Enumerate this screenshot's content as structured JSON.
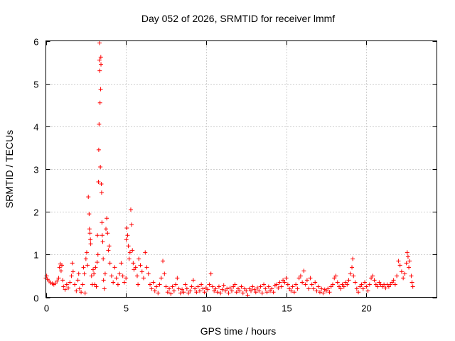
{
  "chart_data": {
    "type": "scatter",
    "title": "Day 052 of 2026, SRMTID for receiver lmmf",
    "xlabel": "GPS time / hours",
    "ylabel": "SRMTID / TECUs",
    "xlim": [
      0,
      24.4
    ],
    "ylim": [
      0,
      6
    ],
    "xticks": [
      0,
      5,
      10,
      15,
      20
    ],
    "yticks": [
      0,
      1,
      2,
      3,
      4,
      5,
      6
    ],
    "grid": true,
    "marker": "+",
    "color": "#ff0000",
    "series": [
      {
        "name": "SRMTID",
        "points": [
          [
            0.0,
            0.45
          ],
          [
            0.05,
            0.5
          ],
          [
            0.1,
            0.42
          ],
          [
            0.2,
            0.38
          ],
          [
            0.3,
            0.34
          ],
          [
            0.4,
            0.32
          ],
          [
            0.5,
            0.3
          ],
          [
            0.6,
            0.33
          ],
          [
            0.7,
            0.38
          ],
          [
            0.8,
            0.45
          ],
          [
            0.85,
            0.7
          ],
          [
            0.9,
            0.78
          ],
          [
            0.95,
            0.62
          ],
          [
            1.0,
            0.75
          ],
          [
            1.05,
            0.4
          ],
          [
            1.1,
            0.25
          ],
          [
            1.2,
            0.18
          ],
          [
            1.3,
            0.3
          ],
          [
            1.4,
            0.22
          ],
          [
            1.5,
            0.35
          ],
          [
            1.6,
            0.5
          ],
          [
            1.65,
            0.8
          ],
          [
            1.7,
            0.6
          ],
          [
            1.8,
            0.3
          ],
          [
            1.9,
            0.15
          ],
          [
            2.0,
            0.4
          ],
          [
            2.05,
            0.55
          ],
          [
            2.1,
            0.2
          ],
          [
            2.2,
            0.12
          ],
          [
            2.3,
            0.3
          ],
          [
            2.35,
            0.7
          ],
          [
            2.4,
            0.55
          ],
          [
            2.45,
            0.1
          ],
          [
            2.5,
            0.9
          ],
          [
            2.55,
            1.05
          ],
          [
            2.6,
            0.75
          ],
          [
            2.65,
            2.35
          ],
          [
            2.7,
            1.95
          ],
          [
            2.72,
            1.6
          ],
          [
            2.75,
            1.5
          ],
          [
            2.78,
            1.35
          ],
          [
            2.8,
            1.25
          ],
          [
            2.85,
            0.5
          ],
          [
            2.9,
            0.3
          ],
          [
            2.95,
            0.65
          ],
          [
            3.0,
            0.55
          ],
          [
            3.05,
            0.3
          ],
          [
            3.1,
            0.7
          ],
          [
            3.15,
            0.25
          ],
          [
            3.2,
            0.82
          ],
          [
            3.22,
            1.45
          ],
          [
            3.25,
            1.0
          ],
          [
            3.28,
            2.7
          ],
          [
            3.3,
            3.45
          ],
          [
            3.32,
            4.05
          ],
          [
            3.34,
            5.55
          ],
          [
            3.35,
            5.95
          ],
          [
            3.36,
            5.3
          ],
          [
            3.38,
            4.55
          ],
          [
            3.4,
            3.05
          ],
          [
            3.42,
            4.87
          ],
          [
            3.43,
            5.62
          ],
          [
            3.44,
            5.45
          ],
          [
            3.46,
            2.65
          ],
          [
            3.48,
            2.45
          ],
          [
            3.5,
            1.75
          ],
          [
            3.52,
            1.45
          ],
          [
            3.55,
            1.3
          ],
          [
            3.58,
            0.9
          ],
          [
            3.6,
            0.4
          ],
          [
            3.65,
            0.2
          ],
          [
            3.7,
            0.55
          ],
          [
            3.75,
            1.6
          ],
          [
            3.8,
            1.85
          ],
          [
            3.85,
            1.5
          ],
          [
            3.9,
            1.1
          ],
          [
            3.95,
            1.2
          ],
          [
            4.0,
            0.8
          ],
          [
            4.1,
            0.5
          ],
          [
            4.2,
            0.35
          ],
          [
            4.3,
            0.7
          ],
          [
            4.4,
            0.45
          ],
          [
            4.5,
            0.3
          ],
          [
            4.6,
            0.55
          ],
          [
            4.7,
            0.8
          ],
          [
            4.8,
            0.5
          ],
          [
            4.9,
            0.35
          ],
          [
            5.0,
            0.45
          ],
          [
            5.02,
            1.35
          ],
          [
            5.05,
            1.62
          ],
          [
            5.1,
            1.45
          ],
          [
            5.15,
            1.2
          ],
          [
            5.2,
            0.9
          ],
          [
            5.25,
            1.05
          ],
          [
            5.3,
            2.05
          ],
          [
            5.35,
            1.7
          ],
          [
            5.4,
            1.1
          ],
          [
            5.45,
            0.8
          ],
          [
            5.5,
            0.65
          ],
          [
            5.6,
            0.7
          ],
          [
            5.7,
            0.5
          ],
          [
            5.75,
            0.3
          ],
          [
            5.8,
            0.9
          ],
          [
            5.9,
            0.75
          ],
          [
            6.0,
            0.6
          ],
          [
            6.1,
            0.45
          ],
          [
            6.2,
            1.05
          ],
          [
            6.3,
            0.7
          ],
          [
            6.4,
            0.55
          ],
          [
            6.5,
            0.3
          ],
          [
            6.6,
            0.2
          ],
          [
            6.7,
            0.35
          ],
          [
            6.8,
            0.15
          ],
          [
            6.9,
            0.25
          ],
          [
            7.0,
            0.1
          ],
          [
            7.1,
            0.3
          ],
          [
            7.2,
            0.45
          ],
          [
            7.3,
            0.85
          ],
          [
            7.4,
            0.55
          ],
          [
            7.5,
            0.25
          ],
          [
            7.6,
            0.12
          ],
          [
            7.7,
            0.2
          ],
          [
            7.8,
            0.08
          ],
          [
            7.9,
            0.25
          ],
          [
            8.0,
            0.15
          ],
          [
            8.1,
            0.3
          ],
          [
            8.2,
            0.45
          ],
          [
            8.3,
            0.2
          ],
          [
            8.4,
            0.1
          ],
          [
            8.5,
            0.18
          ],
          [
            8.6,
            0.12
          ],
          [
            8.7,
            0.3
          ],
          [
            8.8,
            0.2
          ],
          [
            8.9,
            0.1
          ],
          [
            9.0,
            0.15
          ],
          [
            9.1,
            0.25
          ],
          [
            9.2,
            0.4
          ],
          [
            9.3,
            0.2
          ],
          [
            9.4,
            0.12
          ],
          [
            9.5,
            0.25
          ],
          [
            9.6,
            0.15
          ],
          [
            9.7,
            0.3
          ],
          [
            9.8,
            0.2
          ],
          [
            9.9,
            0.12
          ],
          [
            10.0,
            0.22
          ],
          [
            10.1,
            0.18
          ],
          [
            10.2,
            0.3
          ],
          [
            10.3,
            0.55
          ],
          [
            10.4,
            0.25
          ],
          [
            10.5,
            0.15
          ],
          [
            10.6,
            0.2
          ],
          [
            10.7,
            0.12
          ],
          [
            10.8,
            0.25
          ],
          [
            10.9,
            0.1
          ],
          [
            11.0,
            0.18
          ],
          [
            11.1,
            0.28
          ],
          [
            11.2,
            0.15
          ],
          [
            11.3,
            0.2
          ],
          [
            11.4,
            0.1
          ],
          [
            11.5,
            0.22
          ],
          [
            11.6,
            0.15
          ],
          [
            11.7,
            0.25
          ],
          [
            11.8,
            0.3
          ],
          [
            11.9,
            0.12
          ],
          [
            12.0,
            0.2
          ],
          [
            12.1,
            0.15
          ],
          [
            12.2,
            0.25
          ],
          [
            12.3,
            0.1
          ],
          [
            12.4,
            0.2
          ],
          [
            12.5,
            0.15
          ],
          [
            12.6,
            0.05
          ],
          [
            12.7,
            0.2
          ],
          [
            12.8,
            0.15
          ],
          [
            12.9,
            0.25
          ],
          [
            13.0,
            0.18
          ],
          [
            13.1,
            0.12
          ],
          [
            13.2,
            0.22
          ],
          [
            13.3,
            0.15
          ],
          [
            13.4,
            0.25
          ],
          [
            13.5,
            0.1
          ],
          [
            13.6,
            0.3
          ],
          [
            13.7,
            0.2
          ],
          [
            13.8,
            0.12
          ],
          [
            13.9,
            0.25
          ],
          [
            14.0,
            0.15
          ],
          [
            14.1,
            0.2
          ],
          [
            14.2,
            0.12
          ],
          [
            14.3,
            0.28
          ],
          [
            14.4,
            0.3
          ],
          [
            14.5,
            0.22
          ],
          [
            14.6,
            0.35
          ],
          [
            14.7,
            0.25
          ],
          [
            14.8,
            0.4
          ],
          [
            14.9,
            0.35
          ],
          [
            15.0,
            0.45
          ],
          [
            15.1,
            0.3
          ],
          [
            15.2,
            0.2
          ],
          [
            15.3,
            0.15
          ],
          [
            15.4,
            0.25
          ],
          [
            15.5,
            0.12
          ],
          [
            15.6,
            0.3
          ],
          [
            15.7,
            0.2
          ],
          [
            15.8,
            0.45
          ],
          [
            15.9,
            0.5
          ],
          [
            16.0,
            0.35
          ],
          [
            16.1,
            0.62
          ],
          [
            16.2,
            0.3
          ],
          [
            16.3,
            0.4
          ],
          [
            16.4,
            0.2
          ],
          [
            16.5,
            0.45
          ],
          [
            16.6,
            0.3
          ],
          [
            16.7,
            0.2
          ],
          [
            16.8,
            0.35
          ],
          [
            16.9,
            0.15
          ],
          [
            17.0,
            0.25
          ],
          [
            17.1,
            0.12
          ],
          [
            17.2,
            0.2
          ],
          [
            17.3,
            0.1
          ],
          [
            17.4,
            0.18
          ],
          [
            17.5,
            0.15
          ],
          [
            17.6,
            0.2
          ],
          [
            17.7,
            0.12
          ],
          [
            17.8,
            0.25
          ],
          [
            17.9,
            0.3
          ],
          [
            18.0,
            0.45
          ],
          [
            18.1,
            0.5
          ],
          [
            18.2,
            0.35
          ],
          [
            18.3,
            0.25
          ],
          [
            18.4,
            0.2
          ],
          [
            18.5,
            0.3
          ],
          [
            18.6,
            0.25
          ],
          [
            18.7,
            0.35
          ],
          [
            18.8,
            0.3
          ],
          [
            18.9,
            0.4
          ],
          [
            19.0,
            0.55
          ],
          [
            19.1,
            0.7
          ],
          [
            19.15,
            0.9
          ],
          [
            19.2,
            0.5
          ],
          [
            19.3,
            0.35
          ],
          [
            19.4,
            0.2
          ],
          [
            19.5,
            0.12
          ],
          [
            19.6,
            0.25
          ],
          [
            19.7,
            0.3
          ],
          [
            19.8,
            0.2
          ],
          [
            19.9,
            0.35
          ],
          [
            20.0,
            0.25
          ],
          [
            20.1,
            0.15
          ],
          [
            20.2,
            0.3
          ],
          [
            20.3,
            0.45
          ],
          [
            20.4,
            0.5
          ],
          [
            20.5,
            0.4
          ],
          [
            20.6,
            0.3
          ],
          [
            20.7,
            0.25
          ],
          [
            20.8,
            0.35
          ],
          [
            20.9,
            0.3
          ],
          [
            21.0,
            0.25
          ],
          [
            21.1,
            0.3
          ],
          [
            21.2,
            0.22
          ],
          [
            21.3,
            0.3
          ],
          [
            21.4,
            0.25
          ],
          [
            21.5,
            0.3
          ],
          [
            21.6,
            0.35
          ],
          [
            21.7,
            0.4
          ],
          [
            21.8,
            0.3
          ],
          [
            21.9,
            0.5
          ],
          [
            22.0,
            0.85
          ],
          [
            22.1,
            0.75
          ],
          [
            22.2,
            0.6
          ],
          [
            22.3,
            0.45
          ],
          [
            22.4,
            0.55
          ],
          [
            22.5,
            0.8
          ],
          [
            22.55,
            1.05
          ],
          [
            22.6,
            0.95
          ],
          [
            22.65,
            0.7
          ],
          [
            22.7,
            0.85
          ],
          [
            22.8,
            0.5
          ],
          [
            22.85,
            0.35
          ],
          [
            22.9,
            0.25
          ]
        ]
      }
    ]
  }
}
